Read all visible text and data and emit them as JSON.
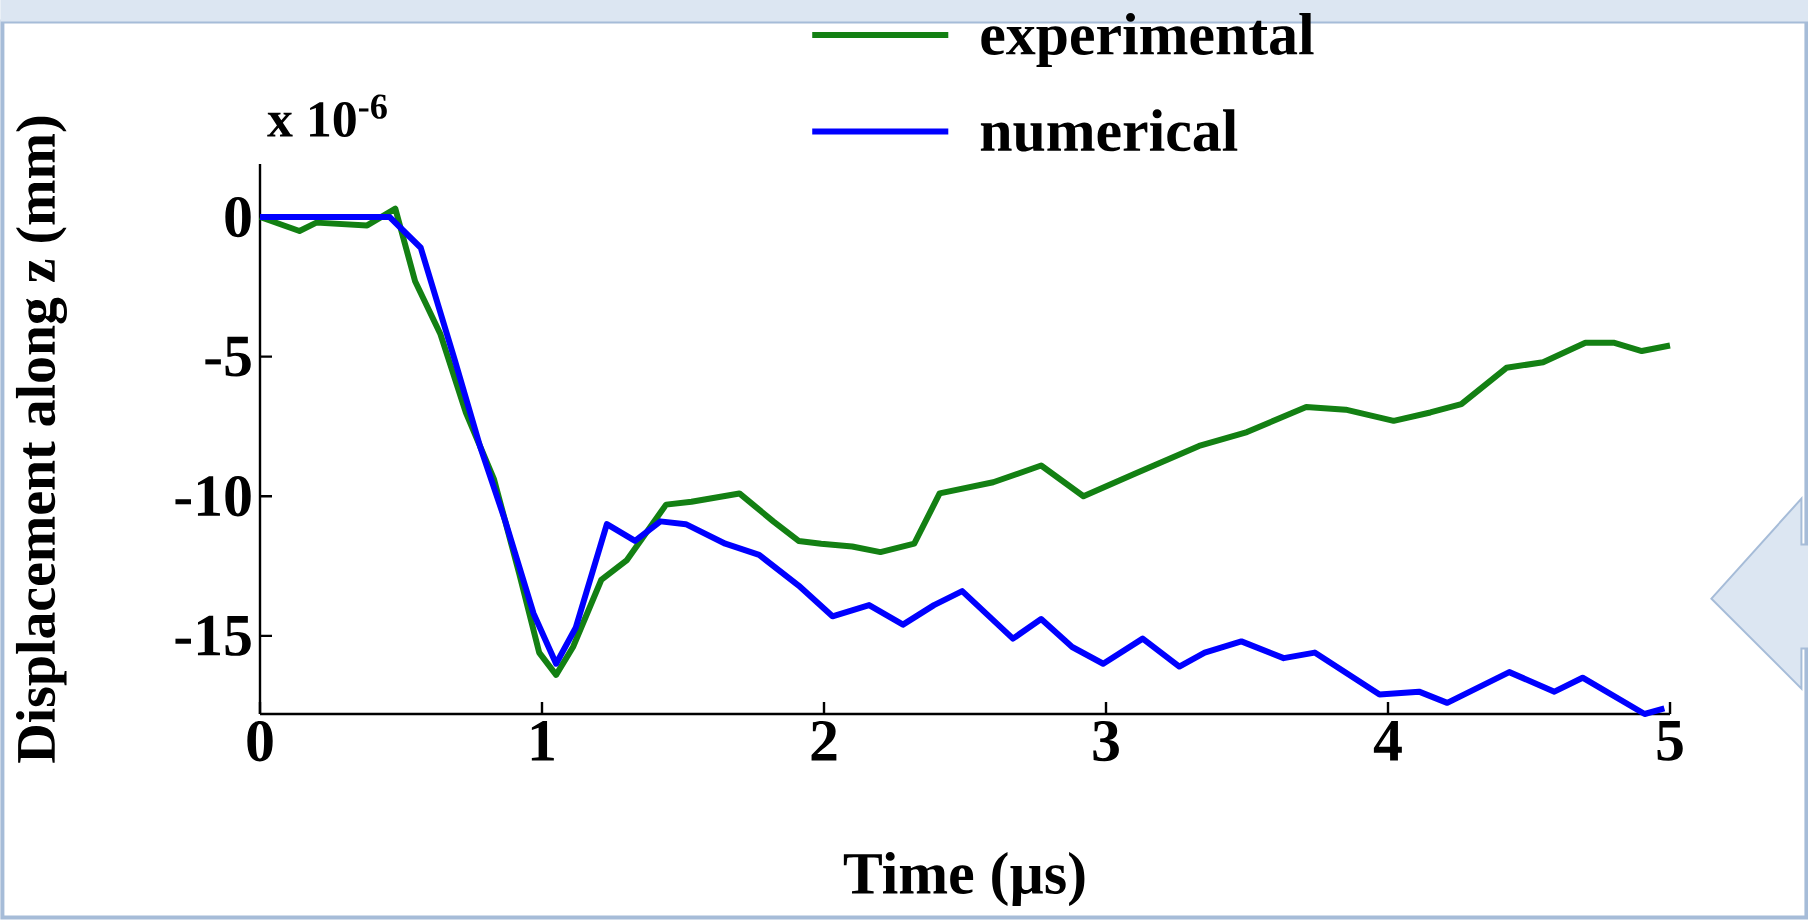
{
  "chart_data": {
    "type": "line",
    "xlabel": "Time (µs)",
    "ylabel": "Displacement along z (mm)",
    "annotations": [
      "x 10$^{-6}$"
    ],
    "xlim": [
      0,
      5
    ],
    "ylim": [
      -17.8,
      1.9
    ],
    "xticks": [
      0,
      1,
      2,
      3,
      4,
      5
    ],
    "yticks": [
      -15,
      -10,
      -5,
      0
    ],
    "grid": false,
    "legend": "top",
    "marker": "none",
    "line_style": "solid",
    "series": [
      {
        "name": "experimental",
        "color": "#138013",
        "x": [
          0,
          0.14,
          0.2,
          0.38,
          0.48,
          0.55,
          0.64,
          0.73,
          0.83,
          0.92,
          0.99,
          1.05,
          1.11,
          1.21,
          1.3,
          1.44,
          1.53,
          1.7,
          1.82,
          1.91,
          1.99,
          2.1,
          2.2,
          2.32,
          2.41,
          2.6,
          2.77,
          2.92,
          3.1,
          3.33,
          3.5,
          3.71,
          3.85,
          4.02,
          4.15,
          4.26,
          4.42,
          4.55,
          4.7,
          4.8,
          4.9,
          5.0
        ],
        "values": [
          0,
          -0.5,
          -0.2,
          -0.3,
          0.3,
          -2.3,
          -4.2,
          -7.0,
          -9.4,
          -12.8,
          -15.6,
          -16.4,
          -15.4,
          -13.0,
          -12.3,
          -10.3,
          -10.2,
          -9.9,
          -10.9,
          -11.6,
          -11.7,
          -11.8,
          -12.0,
          -11.7,
          -9.9,
          -9.5,
          -8.9,
          -10.0,
          -9.2,
          -8.2,
          -7.7,
          -6.8,
          -6.9,
          -7.3,
          -7.0,
          -6.7,
          -5.4,
          -5.2,
          -4.5,
          -4.5,
          -4.8,
          -4.6
        ]
      },
      {
        "name": "numerical",
        "color": "#0000ff",
        "x": [
          0,
          0.46,
          0.57,
          0.69,
          0.78,
          0.87,
          0.97,
          1.05,
          1.12,
          1.23,
          1.33,
          1.42,
          1.51,
          1.65,
          1.77,
          1.91,
          2.03,
          2.16,
          2.28,
          2.39,
          2.49,
          2.67,
          2.77,
          2.88,
          2.99,
          3.13,
          3.26,
          3.35,
          3.48,
          3.63,
          3.74,
          3.97,
          4.11,
          4.21,
          4.43,
          4.59,
          4.69,
          4.91,
          4.98
        ],
        "values": [
          0,
          0,
          -1.1,
          -5.1,
          -8.2,
          -10.9,
          -14.2,
          -16.0,
          -14.7,
          -11.0,
          -11.6,
          -10.9,
          -11.0,
          -11.7,
          -12.1,
          -13.2,
          -14.3,
          -13.9,
          -14.6,
          -13.9,
          -13.4,
          -15.1,
          -14.4,
          -15.4,
          -16.0,
          -15.1,
          -16.1,
          -15.6,
          -15.2,
          -15.8,
          -15.6,
          -17.1,
          -17.0,
          -17.4,
          -16.3,
          -17.0,
          -16.5,
          -17.8,
          -17.6
        ]
      }
    ]
  }
}
